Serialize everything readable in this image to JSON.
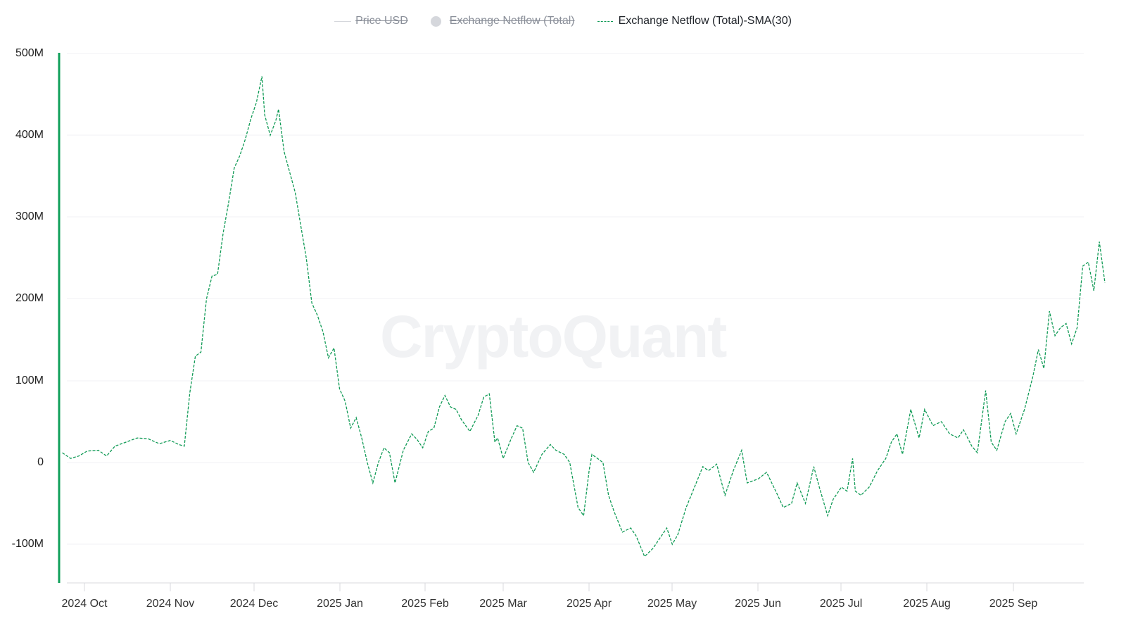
{
  "legend": [
    {
      "label": "Price USD",
      "state": "off",
      "swatch": "line"
    },
    {
      "label": "Exchange Netflow (Total)",
      "state": "off",
      "swatch": "dot"
    },
    {
      "label": "Exchange Netflow (Total)-SMA(30)",
      "state": "on",
      "swatch": "dash"
    }
  ],
  "watermark": "CryptoQuant",
  "colors": {
    "series": "#0f9a55",
    "axis_left": "#10a05a",
    "grid": "#f1f2f4",
    "legend_off": "#d5d7dc"
  },
  "y_axis": {
    "ticks": [
      "500M",
      "400M",
      "300M",
      "200M",
      "100M",
      "0",
      "-100M"
    ]
  },
  "x_axis": {
    "ticks": [
      "2024 Oct",
      "2024 Nov",
      "2024 Dec",
      "2025 Jan",
      "2025 Feb",
      "2025 Mar",
      "2025 Apr",
      "2025 May",
      "2025 Jun",
      "2025 Jul",
      "2025 Aug",
      "2025 Sep"
    ]
  },
  "chart_data": {
    "type": "line",
    "title": "",
    "xlabel": "",
    "ylabel": "",
    "ylim": [
      -150000000,
      500000000
    ],
    "grid": true,
    "legend_position": "top-center",
    "series": [
      {
        "name": "Exchange Netflow (Total)-SMA(30)",
        "style": "dashed",
        "color": "#0f9a55",
        "unit": "USD M",
        "points": [
          [
            "2024-09-23",
            12
          ],
          [
            "2024-09-26",
            5
          ],
          [
            "2024-09-29",
            8
          ],
          [
            "2024-10-02",
            14
          ],
          [
            "2024-10-06",
            15
          ],
          [
            "2024-10-09",
            8
          ],
          [
            "2024-10-12",
            20
          ],
          [
            "2024-10-16",
            25
          ],
          [
            "2024-10-20",
            30
          ],
          [
            "2024-10-24",
            29
          ],
          [
            "2024-10-28",
            23
          ],
          [
            "2024-11-01",
            27
          ],
          [
            "2024-11-04",
            22
          ],
          [
            "2024-11-06",
            20
          ],
          [
            "2024-11-08",
            85
          ],
          [
            "2024-11-10",
            130
          ],
          [
            "2024-11-12",
            135
          ],
          [
            "2024-11-14",
            200
          ],
          [
            "2024-11-16",
            228
          ],
          [
            "2024-11-18",
            230
          ],
          [
            "2024-11-20",
            280
          ],
          [
            "2024-11-22",
            318
          ],
          [
            "2024-11-24",
            360
          ],
          [
            "2024-11-26",
            375
          ],
          [
            "2024-11-28",
            395
          ],
          [
            "2024-11-30",
            420
          ],
          [
            "2024-12-02",
            440
          ],
          [
            "2024-12-04",
            472
          ],
          [
            "2024-12-05",
            425
          ],
          [
            "2024-12-07",
            400
          ],
          [
            "2024-12-09",
            418
          ],
          [
            "2024-12-10",
            432
          ],
          [
            "2024-12-12",
            380
          ],
          [
            "2024-12-14",
            355
          ],
          [
            "2024-12-16",
            330
          ],
          [
            "2024-12-18",
            290
          ],
          [
            "2024-12-20",
            250
          ],
          [
            "2024-12-22",
            195
          ],
          [
            "2024-12-24",
            180
          ],
          [
            "2024-12-26",
            160
          ],
          [
            "2024-12-28",
            128
          ],
          [
            "2024-12-30",
            140
          ],
          [
            "2025-01-01",
            90
          ],
          [
            "2025-01-03",
            75
          ],
          [
            "2025-01-05",
            42
          ],
          [
            "2025-01-07",
            55
          ],
          [
            "2025-01-09",
            30
          ],
          [
            "2025-01-11",
            0
          ],
          [
            "2025-01-13",
            -25
          ],
          [
            "2025-01-15",
            0
          ],
          [
            "2025-01-17",
            18
          ],
          [
            "2025-01-19",
            12
          ],
          [
            "2025-01-21",
            -25
          ],
          [
            "2025-01-24",
            15
          ],
          [
            "2025-01-27",
            35
          ],
          [
            "2025-01-29",
            28
          ],
          [
            "2025-01-31",
            18
          ],
          [
            "2025-02-02",
            38
          ],
          [
            "2025-02-04",
            42
          ],
          [
            "2025-02-06",
            68
          ],
          [
            "2025-02-08",
            82
          ],
          [
            "2025-02-10",
            68
          ],
          [
            "2025-02-12",
            65
          ],
          [
            "2025-02-14",
            52
          ],
          [
            "2025-02-17",
            38
          ],
          [
            "2025-02-20",
            58
          ],
          [
            "2025-02-22",
            80
          ],
          [
            "2025-02-24",
            84
          ],
          [
            "2025-02-26",
            25
          ],
          [
            "2025-02-27",
            30
          ],
          [
            "2025-03-01",
            5
          ],
          [
            "2025-03-04",
            30
          ],
          [
            "2025-03-06",
            45
          ],
          [
            "2025-03-08",
            42
          ],
          [
            "2025-03-10",
            0
          ],
          [
            "2025-03-12",
            -12
          ],
          [
            "2025-03-15",
            10
          ],
          [
            "2025-03-18",
            22
          ],
          [
            "2025-03-20",
            15
          ],
          [
            "2025-03-23",
            10
          ],
          [
            "2025-03-25",
            0
          ],
          [
            "2025-03-28",
            -55
          ],
          [
            "2025-03-30",
            -65
          ],
          [
            "2025-04-01",
            -10
          ],
          [
            "2025-04-02",
            10
          ],
          [
            "2025-04-04",
            5
          ],
          [
            "2025-04-06",
            0
          ],
          [
            "2025-04-08",
            -40
          ],
          [
            "2025-04-10",
            -60
          ],
          [
            "2025-04-13",
            -85
          ],
          [
            "2025-04-16",
            -80
          ],
          [
            "2025-04-18",
            -90
          ],
          [
            "2025-04-21",
            -115
          ],
          [
            "2025-04-24",
            -105
          ],
          [
            "2025-04-27",
            -90
          ],
          [
            "2025-04-29",
            -80
          ],
          [
            "2025-05-01",
            -100
          ],
          [
            "2025-05-03",
            -88
          ],
          [
            "2025-05-06",
            -55
          ],
          [
            "2025-05-09",
            -30
          ],
          [
            "2025-05-12",
            -5
          ],
          [
            "2025-05-14",
            -10
          ],
          [
            "2025-05-17",
            -2
          ],
          [
            "2025-05-20",
            -40
          ],
          [
            "2025-05-23",
            -10
          ],
          [
            "2025-05-26",
            15
          ],
          [
            "2025-05-28",
            -25
          ],
          [
            "2025-06-01",
            -20
          ],
          [
            "2025-06-04",
            -12
          ],
          [
            "2025-06-08",
            -40
          ],
          [
            "2025-06-10",
            -55
          ],
          [
            "2025-06-13",
            -50
          ],
          [
            "2025-06-15",
            -25
          ],
          [
            "2025-06-18",
            -50
          ],
          [
            "2025-06-21",
            -5
          ],
          [
            "2025-06-23",
            -30
          ],
          [
            "2025-06-26",
            -65
          ],
          [
            "2025-06-28",
            -45
          ],
          [
            "2025-07-01",
            -30
          ],
          [
            "2025-07-03",
            -35
          ],
          [
            "2025-07-05",
            5
          ],
          [
            "2025-07-06",
            -35
          ],
          [
            "2025-07-08",
            -40
          ],
          [
            "2025-07-11",
            -30
          ],
          [
            "2025-07-14",
            -10
          ],
          [
            "2025-07-17",
            5
          ],
          [
            "2025-07-19",
            25
          ],
          [
            "2025-07-21",
            35
          ],
          [
            "2025-07-23",
            10
          ],
          [
            "2025-07-26",
            65
          ],
          [
            "2025-07-29",
            30
          ],
          [
            "2025-07-31",
            65
          ],
          [
            "2025-08-03",
            45
          ],
          [
            "2025-08-06",
            50
          ],
          [
            "2025-08-09",
            35
          ],
          [
            "2025-08-12",
            30
          ],
          [
            "2025-08-14",
            40
          ],
          [
            "2025-08-17",
            20
          ],
          [
            "2025-08-19",
            12
          ],
          [
            "2025-08-22",
            88
          ],
          [
            "2025-08-24",
            25
          ],
          [
            "2025-08-26",
            15
          ],
          [
            "2025-08-29",
            50
          ],
          [
            "2025-08-31",
            60
          ],
          [
            "2025-09-02",
            35
          ],
          [
            "2025-09-05",
            65
          ],
          [
            "2025-09-08",
            105
          ],
          [
            "2025-09-10",
            138
          ],
          [
            "2025-09-12",
            115
          ],
          [
            "2025-09-14",
            185
          ],
          [
            "2025-09-16",
            155
          ],
          [
            "2025-09-18",
            165
          ],
          [
            "2025-09-20",
            170
          ],
          [
            "2025-09-22",
            145
          ],
          [
            "2025-09-24",
            165
          ],
          [
            "2025-09-26",
            240
          ],
          [
            "2025-09-28",
            245
          ],
          [
            "2025-09-30",
            210
          ],
          [
            "2025-10-02",
            270
          ],
          [
            "2025-10-04",
            220
          ]
        ]
      }
    ]
  }
}
